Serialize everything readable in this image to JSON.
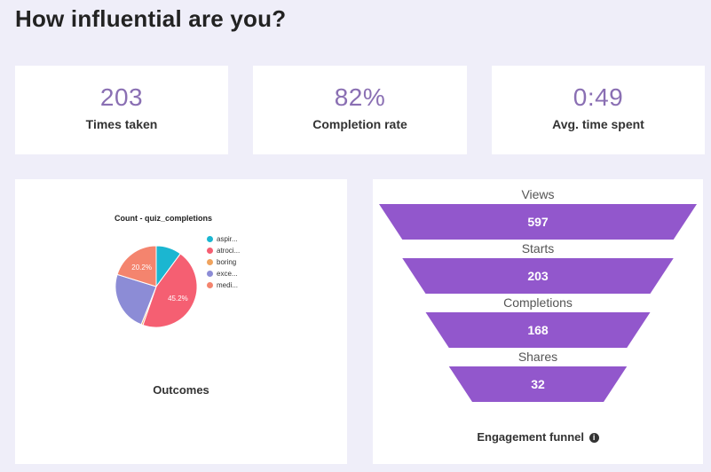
{
  "page": {
    "title": "How influential are you?"
  },
  "stats": [
    {
      "value": "203",
      "label": "Times taken"
    },
    {
      "value": "82%",
      "label": "Completion rate"
    },
    {
      "value": "0:49",
      "label": "Avg. time spent"
    }
  ],
  "outcomes": {
    "caption": "Outcomes",
    "legend_labels": [
      "aspir...",
      "atroci...",
      "boring",
      "exce...",
      "medi..."
    ]
  },
  "chart_data": [
    {
      "type": "pie",
      "title": "Count - quiz_completions",
      "categories": [
        "aspir...",
        "atroci...",
        "boring",
        "exce...",
        "medi..."
      ],
      "values": [
        10.1,
        45.2,
        0.7,
        23.8,
        20.2
      ],
      "data_labels": [
        "",
        "45.2%",
        "",
        "",
        "20.2%"
      ],
      "colors": [
        "#1bb6d1",
        "#f55f72",
        "#f0a35e",
        "#8c8cd6",
        "#f4846e"
      ],
      "legend": "right"
    },
    {
      "type": "funnel",
      "title": "Engagement funnel",
      "categories": [
        "Views",
        "Starts",
        "Completions",
        "Shares"
      ],
      "values": [
        597,
        203,
        168,
        32
      ],
      "color": "#9257cc"
    }
  ],
  "funnel": {
    "caption": "Engagement funnel",
    "info_icon": "i"
  },
  "colors": {
    "accent": "#9257cc",
    "stat_value": "#8a6fb3",
    "background": "#efeef9"
  }
}
